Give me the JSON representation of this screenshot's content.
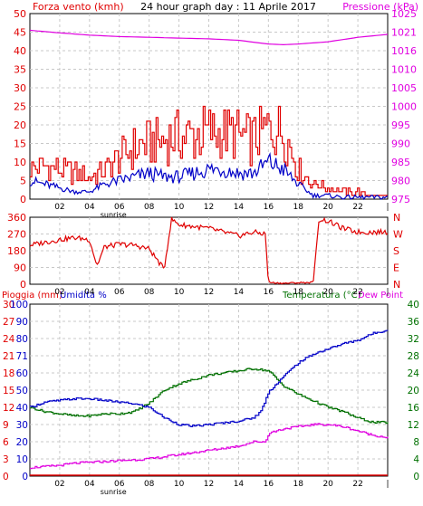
{
  "header": {
    "left_title": "Forza vento (kmh)",
    "center_title": "24 hour graph day : 11 Aprile 2017",
    "right_title": "Pressione (kPa)"
  },
  "colors": {
    "wind": "#e00000",
    "wind_avg": "#0000c8",
    "pressure": "#e000e0",
    "temperature": "#007000",
    "humidity": "#0000c8",
    "dewpoint": "#e000e0",
    "rain": "#e00000",
    "grid": "#c8c8c8",
    "axis_black": "#000000"
  },
  "chart_data": [
    {
      "type": "line",
      "panel": "wind_pressure",
      "x_ticks": [
        "02",
        "04",
        "06",
        "08",
        "10",
        "12",
        "14",
        "16",
        "18",
        "20",
        "22",
        "|"
      ],
      "sunrise_label": "sunrise",
      "sunrise_hour": 5.6,
      "y_left": {
        "label": "Forza vento (kmh)",
        "range": [
          0,
          50
        ],
        "ticks": [
          0,
          5,
          10,
          15,
          20,
          25,
          30,
          35,
          40,
          45,
          50
        ]
      },
      "y_right": {
        "label": "Pressione (kPa)",
        "range": [
          975,
          1025
        ],
        "ticks": [
          975,
          980,
          985,
          990,
          995,
          1000,
          1005,
          1010,
          1016,
          1021,
          1025
        ]
      },
      "series": [
        {
          "role": "gust",
          "axis": "left",
          "color": "#e00000",
          "x": [
            0,
            1,
            2,
            3,
            4,
            5,
            6,
            7,
            8,
            9,
            10,
            11,
            12,
            13,
            14,
            15,
            16,
            17,
            18,
            19,
            20,
            21,
            22,
            23,
            24
          ],
          "y": [
            8,
            9,
            8,
            7,
            6,
            8,
            11,
            14,
            15,
            16,
            17,
            17,
            18,
            18,
            17,
            16,
            19,
            18,
            8,
            4,
            3,
            2,
            2,
            1,
            1
          ]
        },
        {
          "role": "average",
          "axis": "left",
          "color": "#0000c8",
          "x": [
            0,
            1,
            2,
            3,
            4,
            5,
            6,
            7,
            8,
            9,
            10,
            11,
            12,
            13,
            14,
            15,
            16,
            17,
            18,
            19,
            20,
            21,
            22,
            23,
            24
          ],
          "y": [
            5,
            4,
            3,
            2,
            2,
            4,
            5,
            6,
            7,
            6,
            6,
            7,
            8,
            8,
            7,
            7,
            10,
            8,
            4,
            1,
            1,
            0.5,
            0.5,
            0.5,
            0.5
          ]
        },
        {
          "role": "pressure",
          "axis": "right",
          "color": "#e000e0",
          "x": [
            0,
            2,
            4,
            6,
            8,
            10,
            12,
            14,
            16,
            17,
            18,
            20,
            22,
            24
          ],
          "y": [
            1020.5,
            1019.8,
            1019.2,
            1018.8,
            1018.6,
            1018.4,
            1018.2,
            1017.8,
            1016.8,
            1016.6,
            1016.8,
            1017.4,
            1018.6,
            1019.4
          ]
        }
      ]
    },
    {
      "type": "line",
      "panel": "wind_direction",
      "x_ticks": [
        "02",
        "04",
        "06",
        "08",
        "10",
        "12",
        "14",
        "16",
        "18",
        "20",
        "22",
        "|"
      ],
      "y_left": {
        "range": [
          0,
          360
        ],
        "ticks": [
          0,
          90,
          180,
          270,
          360
        ]
      },
      "y_right_labels": [
        "N",
        "W",
        "S",
        "E",
        "N"
      ],
      "series": [
        {
          "role": "direction",
          "color": "#e00000",
          "x": [
            0,
            1,
            2,
            3,
            4,
            4.5,
            5,
            6,
            7,
            8,
            9,
            9.5,
            10,
            11,
            12,
            13,
            14,
            15,
            15.8,
            16,
            17,
            18,
            19,
            19.4,
            20,
            21,
            22,
            24
          ],
          "y": [
            210,
            225,
            240,
            250,
            240,
            100,
            200,
            215,
            210,
            190,
            80,
            350,
            320,
            310,
            300,
            280,
            260,
            280,
            270,
            10,
            5,
            8,
            10,
            350,
            340,
            300,
            280,
            280
          ]
        }
      ]
    },
    {
      "type": "line",
      "panel": "rain_humidity_temp",
      "x_ticks": [
        "02",
        "04",
        "06",
        "08",
        "10",
        "12",
        "14",
        "16",
        "18",
        "20",
        "22",
        "|"
      ],
      "sunrise_label": "sunrise",
      "sunrise_hour": 5.6,
      "header_left_rain": "Pioggia (mm)",
      "header_left_humidity": "Umidita %",
      "header_right_temp": "Temperatura (°C)",
      "header_right_dew": "Dew Point",
      "y_rain": {
        "ticks": [
          0,
          3,
          6,
          9,
          12,
          15,
          18,
          21,
          24,
          27,
          30
        ]
      },
      "y_humidity": {
        "range": [
          0,
          100
        ],
        "ticks": [
          0,
          10,
          20,
          30,
          40,
          50,
          60,
          71,
          80,
          90,
          100
        ]
      },
      "y_temp": {
        "range": [
          0,
          40
        ],
        "ticks": [
          0,
          4,
          8,
          12,
          16,
          20,
          24,
          28,
          32,
          36,
          40
        ]
      },
      "series": [
        {
          "role": "humidity",
          "axis": "humidity",
          "color": "#0000c8",
          "x": [
            0,
            1,
            2,
            3,
            4,
            5,
            6,
            7,
            8,
            9,
            10,
            11,
            12,
            13,
            14,
            15,
            15.5,
            16,
            17,
            18,
            19,
            20,
            21,
            22,
            23,
            24
          ],
          "y": [
            40,
            43,
            44,
            45,
            45,
            44,
            43,
            42,
            40,
            34,
            30,
            29,
            30,
            31,
            32,
            34,
            38,
            49,
            58,
            66,
            71,
            74,
            77,
            79,
            83,
            85
          ]
        },
        {
          "role": "temperature",
          "axis": "temp",
          "color": "#007000",
          "x": [
            0,
            1,
            2,
            3,
            4,
            5,
            6,
            7,
            8,
            9,
            10,
            11,
            12,
            13,
            14,
            15,
            16,
            17,
            18,
            19,
            20,
            21,
            22,
            23,
            24
          ],
          "y": [
            16,
            15,
            14.5,
            14,
            14,
            14.5,
            14.5,
            15,
            17,
            20,
            21.5,
            22.5,
            23.5,
            24,
            24.5,
            25,
            24.5,
            21,
            19,
            17.5,
            16,
            15,
            13.5,
            12.5,
            12.5
          ]
        },
        {
          "role": "dewpoint",
          "axis": "temp",
          "color": "#e000e0",
          "x": [
            0,
            1,
            2,
            3,
            4,
            5,
            6,
            7,
            8,
            9,
            10,
            11,
            12,
            13,
            14,
            15,
            15.8,
            16,
            17,
            18,
            19,
            20,
            21,
            22,
            23,
            24
          ],
          "y": [
            2,
            2.2,
            2.5,
            3,
            3.2,
            3.4,
            3.6,
            3.8,
            4,
            4.5,
            5,
            5.5,
            6,
            6.5,
            7,
            8,
            8,
            10,
            11,
            11.5,
            12,
            12,
            11.5,
            10.5,
            9.5,
            9
          ]
        },
        {
          "role": "rain",
          "axis": "rain",
          "color": "#e00000",
          "x": [
            0,
            24
          ],
          "y": [
            0,
            0
          ]
        }
      ]
    }
  ]
}
